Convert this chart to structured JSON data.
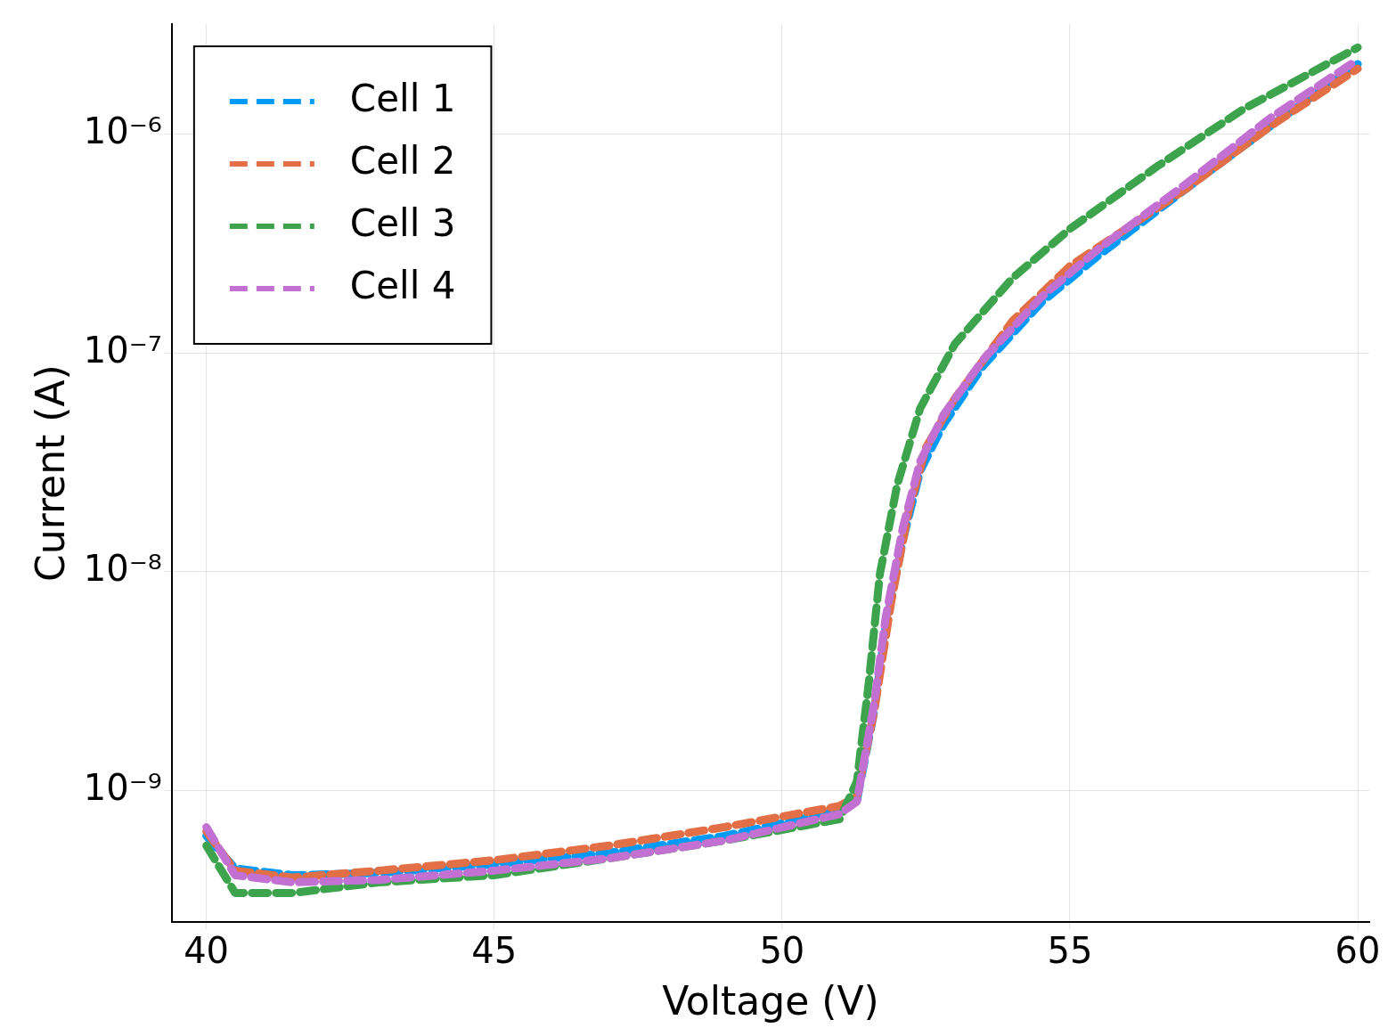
{
  "chart_data": {
    "type": "line",
    "xlabel": "Voltage (V)",
    "ylabel": "Current (A)",
    "log": "y",
    "grid": true,
    "legend": "top left",
    "line_style": "dashed",
    "marker": "none",
    "xlim": [
      39.4,
      60.2
    ],
    "xticks": [
      40,
      45,
      50,
      55,
      60
    ],
    "ylim": [
      2.5e-10,
      3.2e-06
    ],
    "yticks": [
      {
        "value": 1e-09,
        "label": "10⁻⁹"
      },
      {
        "value": 1e-08,
        "label": "10⁻⁸"
      },
      {
        "value": 1e-07,
        "label": "10⁻⁷"
      },
      {
        "value": 1e-06,
        "label": "10⁻⁶"
      }
    ],
    "series": [
      {
        "name": "Cell 1",
        "color": "#009af9",
        "x": [
          40,
          40.5,
          41.5,
          43,
          45,
          47,
          49,
          51,
          51.3,
          51.6,
          51.8,
          52.1,
          52.4,
          52.8,
          53.5,
          54.5,
          55.5,
          57,
          58.5,
          60
        ],
        "values": [
          6.2e-10,
          4.4e-10,
          4.1e-10,
          4.2e-10,
          4.6e-10,
          5.2e-10,
          6.2e-10,
          8.1e-10,
          9e-10,
          2.3e-09,
          5.6e-09,
          1.4e-08,
          2.9e-08,
          4.7e-08,
          8.8e-08,
          1.7e-07,
          2.8e-07,
          5.6e-07,
          1.1e-06,
          2.1e-06
        ]
      },
      {
        "name": "Cell 2",
        "color": "#e26f46",
        "x": [
          40,
          40.5,
          41.5,
          43,
          45,
          47,
          49,
          51,
          51.3,
          51.6,
          51.9,
          52.2,
          52.5,
          53,
          54,
          55,
          57,
          58.5,
          60
        ],
        "values": [
          6.5e-10,
          4.3e-10,
          4e-10,
          4.3e-10,
          4.8e-10,
          5.6e-10,
          6.8e-10,
          8.5e-10,
          9.4e-10,
          2.3e-09,
          7.4e-09,
          1.9e-08,
          3.7e-08,
          6.2e-08,
          1.4e-07,
          2.5e-07,
          5.6e-07,
          1.1e-06,
          2e-06
        ]
      },
      {
        "name": "Cell 3",
        "color": "#3da44d",
        "x": [
          40,
          40.5,
          41.5,
          43,
          45,
          47,
          49,
          51,
          51.3,
          51.5,
          51.7,
          52,
          52.4,
          53,
          54,
          55,
          56.5,
          58,
          60
        ],
        "values": [
          5.6e-10,
          3.4e-10,
          3.4e-10,
          3.8e-10,
          4.1e-10,
          4.9e-10,
          5.9e-10,
          7.4e-10,
          1.1e-09,
          3e-09,
          9.8e-09,
          2.5e-08,
          5.6e-08,
          1.1e-07,
          2.2e-07,
          3.7e-07,
          7.1e-07,
          1.3e-06,
          2.5e-06
        ]
      },
      {
        "name": "Cell 4",
        "color": "#c271d2",
        "x": [
          40,
          40.5,
          41.5,
          43,
          45,
          47,
          49,
          51,
          51.3,
          51.6,
          51.8,
          52.1,
          52.4,
          52.8,
          53.5,
          54.5,
          55.5,
          57,
          58.5,
          60
        ],
        "values": [
          6.8e-10,
          4.1e-10,
          3.8e-10,
          3.9e-10,
          4.3e-10,
          4.9e-10,
          5.9e-10,
          7.8e-10,
          8.9e-10,
          2.5e-09,
          6.2e-09,
          1.6e-08,
          3.2e-08,
          5.2e-08,
          9.4e-08,
          1.8e-07,
          3e-07,
          5.9e-07,
          1.2e-06,
          2.2e-06
        ]
      }
    ]
  }
}
